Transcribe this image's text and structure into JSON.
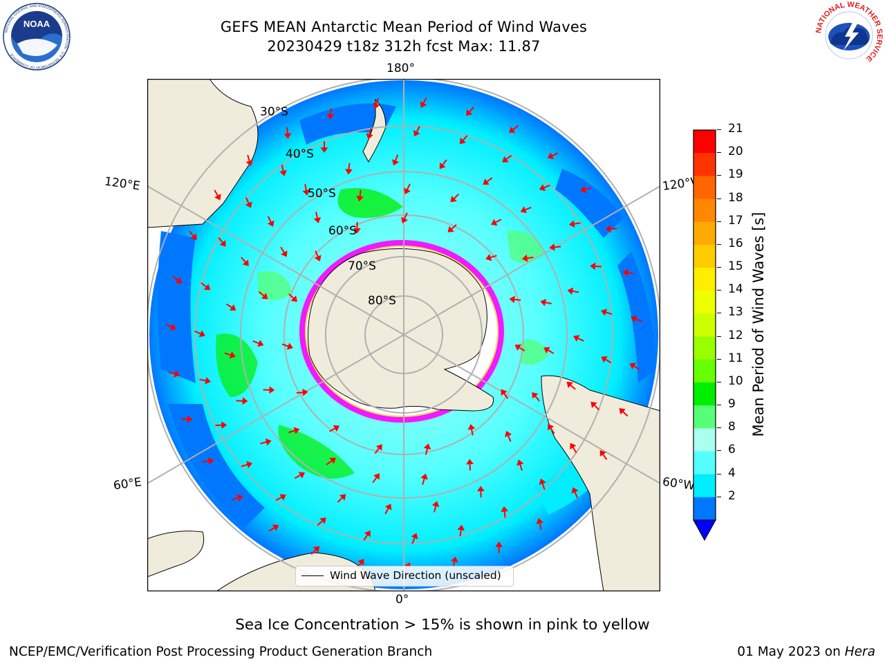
{
  "header": {
    "title_line1": "GEFS MEAN Antarctic Mean Period of Wind Waves",
    "title_line2": "20230429 t18z 312h fcst   Max: 11.87",
    "noaa_logo_text": "NOAA",
    "noaa_ring_text": "NATIONAL OCEANIC AND ATMOSPHERIC ADMINISTRATION · U.S. DEPARTMENT OF COMMERCE",
    "nws_ring_text": "NATIONAL WEATHER SERVICE"
  },
  "map": {
    "projection": "south polar stereographic",
    "lat_labels": [
      "30°S",
      "40°S",
      "50°S",
      "60°S",
      "70°S",
      "80°S"
    ],
    "lon_labels": {
      "top": "180°",
      "bottom": "0°",
      "upper_left": "120°E",
      "upper_right": "120°W",
      "lower_left": "60°E",
      "lower_right": "60°W"
    },
    "legend_label": "Wind Wave Direction (unscaled)",
    "arrow_color": "#ff0000",
    "land_color": "#efecdc",
    "ice_colors": [
      "#ff00ff",
      "#ff66cc",
      "#ffffff",
      "#ffcc33"
    ]
  },
  "colorbar": {
    "label": "Mean Period of Wind Waves [s]",
    "ticks": [
      "21",
      "20",
      "19",
      "18",
      "17",
      "16",
      "15",
      "14",
      "13",
      "12",
      "11",
      "10",
      "9",
      "8",
      "6",
      "4",
      "2"
    ],
    "colors": [
      "#ff0000",
      "#ff3300",
      "#ff6600",
      "#ff8800",
      "#ffaa00",
      "#ffcc00",
      "#ffee00",
      "#eeff00",
      "#ccff00",
      "#99ff00",
      "#66ff00",
      "#00ee00",
      "#55ff77",
      "#aaffee",
      "#55ffff",
      "#00eeff",
      "#0077ff"
    ],
    "extend_color": "#0000ff"
  },
  "footer": {
    "note": "Sea Ice Concentration > 15% is shown in pink to yellow",
    "credit": "NCEP/EMC/Verification Post Processing Product Generation Branch",
    "date": "01 May 2023 on",
    "host": "Hera"
  }
}
